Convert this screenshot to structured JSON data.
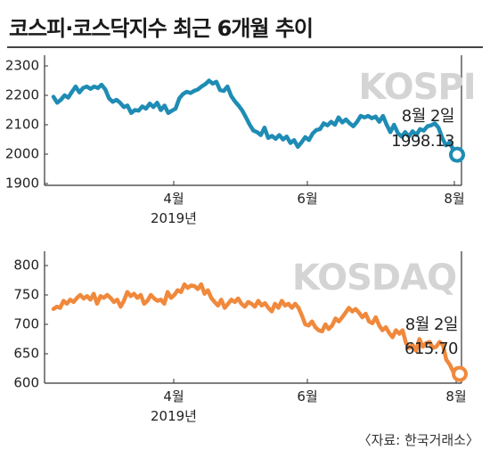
{
  "title": "코스피·코스닥지수 최근 6개월 추이",
  "source": "〈자료: 한국거래소〉",
  "colors": {
    "kospi": "#1e8cb4",
    "kosdaq": "#f0893c",
    "watermark": "#d4d4d4",
    "background": "#ffffff"
  },
  "chart_data": [
    {
      "type": "line",
      "watermark": "KOSPI",
      "ylim": [
        1900,
        2300
      ],
      "yticks": [
        "2300",
        "2200",
        "2100",
        "2000",
        "1900"
      ],
      "xticks": [
        {
          "label": "4월",
          "sub": "2019년"
        },
        {
          "label": "6월",
          "sub": ""
        },
        {
          "label": "8월",
          "sub": ""
        }
      ],
      "grid": false,
      "annotation": {
        "date": "8월 2일",
        "value": "1998.13"
      },
      "values": [
        2195,
        2175,
        2185,
        2200,
        2192,
        2212,
        2230,
        2210,
        2225,
        2230,
        2222,
        2230,
        2225,
        2236,
        2220,
        2190,
        2178,
        2185,
        2175,
        2160,
        2165,
        2140,
        2150,
        2148,
        2162,
        2155,
        2172,
        2160,
        2175,
        2150,
        2165,
        2140,
        2148,
        2155,
        2190,
        2205,
        2212,
        2208,
        2215,
        2220,
        2230,
        2238,
        2250,
        2240,
        2246,
        2218,
        2215,
        2230,
        2198,
        2180,
        2165,
        2148,
        2125,
        2100,
        2080,
        2075,
        2065,
        2090,
        2055,
        2062,
        2052,
        2065,
        2050,
        2060,
        2038,
        2048,
        2025,
        2040,
        2058,
        2048,
        2070,
        2082,
        2085,
        2105,
        2098,
        2110,
        2100,
        2125,
        2108,
        2118,
        2105,
        2095,
        2110,
        2130,
        2125,
        2130,
        2122,
        2128,
        2110,
        2130,
        2100,
        2075,
        2100,
        2072,
        2060,
        2075,
        2060,
        2078,
        2065,
        2085,
        2080,
        2095,
        2098,
        2105,
        2090,
        2055,
        2030,
        2040,
        2015,
        1998.13
      ]
    },
    {
      "type": "line",
      "watermark": "KOSDAQ",
      "ylim": [
        600,
        800
      ],
      "yticks": [
        "800",
        "750",
        "700",
        "650",
        "600"
      ],
      "xticks": [
        {
          "label": "4월",
          "sub": "2019년"
        },
        {
          "label": "6월",
          "sub": ""
        },
        {
          "label": "8월",
          "sub": ""
        }
      ],
      "grid": false,
      "annotation": {
        "date": "8월 2일",
        "value": "615.70"
      },
      "values": [
        726,
        730,
        728,
        740,
        735,
        742,
        738,
        745,
        750,
        744,
        748,
        742,
        752,
        735,
        748,
        745,
        750,
        745,
        738,
        742,
        730,
        740,
        755,
        748,
        752,
        745,
        750,
        735,
        740,
        750,
        744,
        740,
        742,
        735,
        755,
        745,
        750,
        758,
        755,
        768,
        762,
        766,
        765,
        760,
        768,
        752,
        758,
        745,
        738,
        732,
        742,
        728,
        735,
        742,
        738,
        744,
        735,
        730,
        738,
        735,
        730,
        740,
        732,
        736,
        728,
        722,
        735,
        728,
        740,
        732,
        735,
        728,
        735,
        728,
        715,
        700,
        698,
        705,
        695,
        690,
        688,
        700,
        692,
        698,
        710,
        705,
        712,
        720,
        728,
        722,
        726,
        720,
        712,
        718,
        705,
        702,
        712,
        698,
        690,
        695,
        685,
        678,
        690,
        684,
        690,
        668,
        660,
        665,
        655,
        675,
        662,
        668,
        670,
        660,
        662,
        670,
        665,
        640,
        632,
        620,
        625,
        615.7
      ]
    }
  ]
}
